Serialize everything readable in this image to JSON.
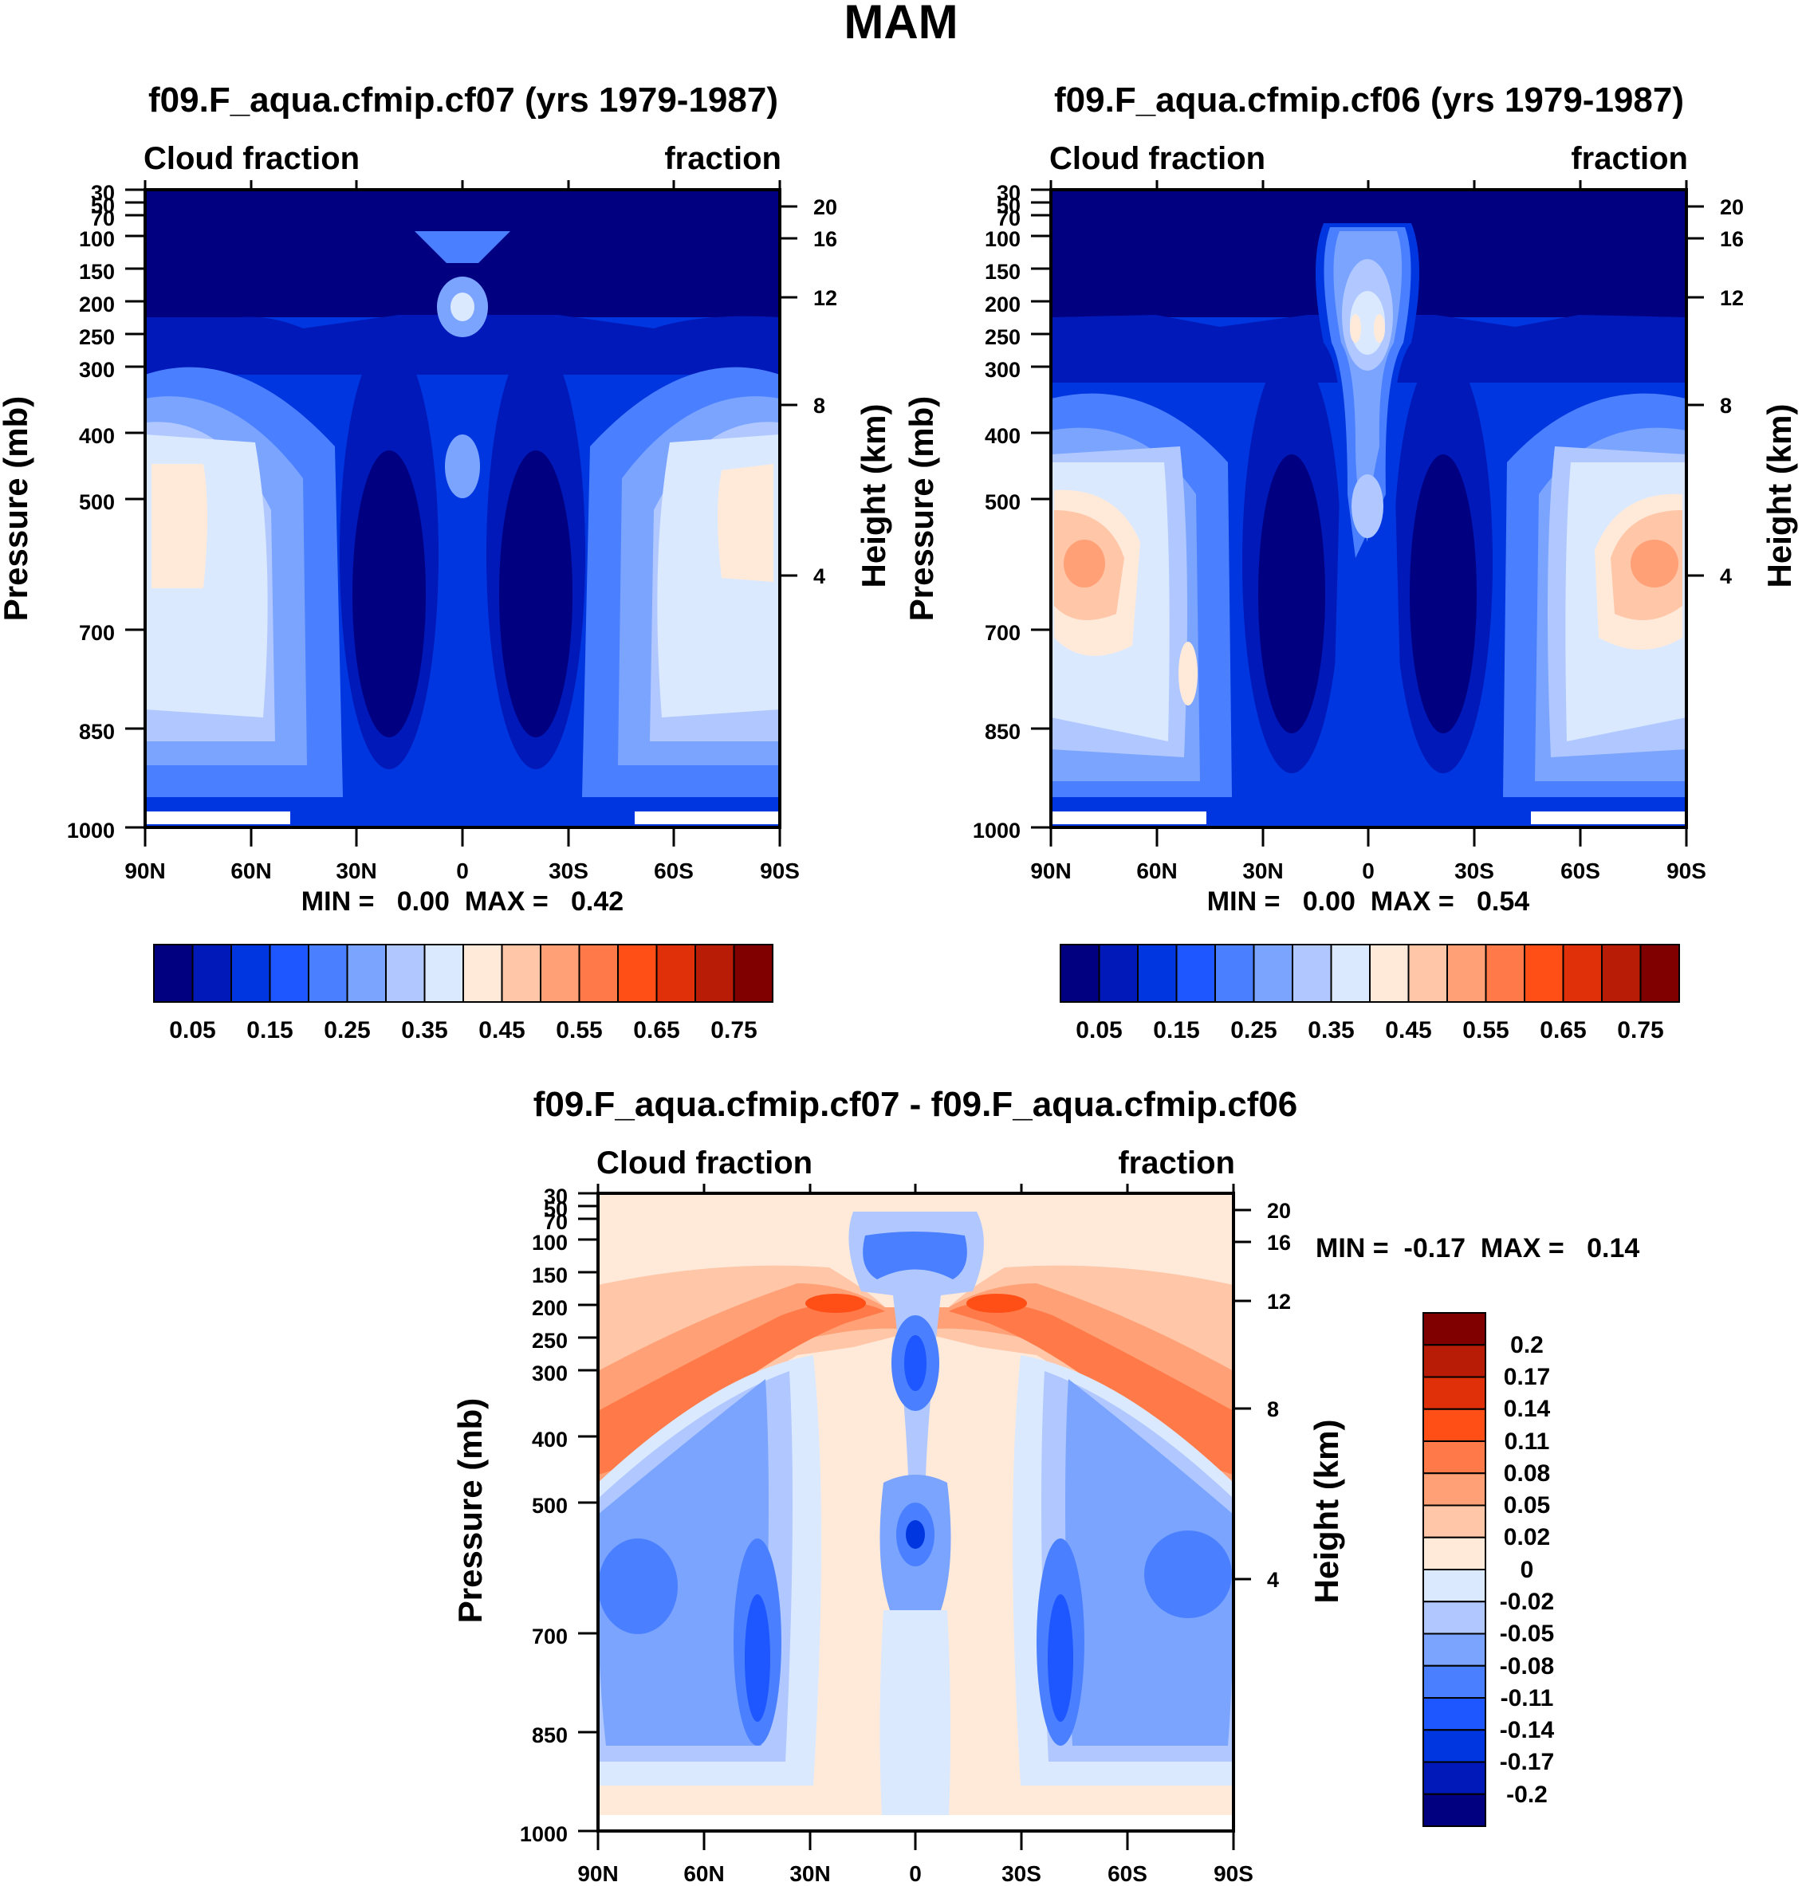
{
  "figure_title": "MAM",
  "chart_data": [
    {
      "type": "heatmap",
      "id": "p1",
      "title": "f09.F_aqua.cfmip.cf07 (yrs 1979-1987)",
      "left_label": "Cloud fraction",
      "right_label": "fraction",
      "ylabel": "Pressure (mb)",
      "y2label": "Height (km)",
      "xticks": [
        "90N",
        "60N",
        "30N",
        "0",
        "30S",
        "60S",
        "90S"
      ],
      "xrange": [
        -90,
        90
      ],
      "yticks": [
        30,
        50,
        70,
        100,
        150,
        200,
        250,
        300,
        400,
        500,
        700,
        850,
        1000
      ],
      "ytick_labels": [
        "30",
        "50",
        "70",
        "100",
        "150",
        "200",
        "250",
        "300",
        "400",
        "500",
        "700",
        "850",
        "1000"
      ],
      "height_ticks": [
        20,
        16,
        12,
        8,
        4
      ],
      "height_tick_labels": [
        "20",
        "16",
        "12",
        "8",
        "4"
      ],
      "stats": "MIN =   0.00  MAX =   0.42",
      "stats_min": 0.0,
      "stats_max": 0.42
    },
    {
      "type": "heatmap",
      "id": "p2",
      "title": "f09.F_aqua.cfmip.cf06 (yrs 1979-1987)",
      "left_label": "Cloud fraction",
      "right_label": "fraction",
      "ylabel": "Pressure (mb)",
      "y2label": "Height (km)",
      "xticks": [
        "90N",
        "60N",
        "30N",
        "0",
        "30S",
        "60S",
        "90S"
      ],
      "xrange": [
        -90,
        90
      ],
      "yticks": [
        30,
        50,
        70,
        100,
        150,
        200,
        250,
        300,
        400,
        500,
        700,
        850,
        1000
      ],
      "ytick_labels": [
        "30",
        "50",
        "70",
        "100",
        "150",
        "200",
        "250",
        "300",
        "400",
        "500",
        "700",
        "850",
        "1000"
      ],
      "height_ticks": [
        20,
        16,
        12,
        8,
        4
      ],
      "height_tick_labels": [
        "20",
        "16",
        "12",
        "8",
        "4"
      ],
      "stats": "MIN =   0.00  MAX =   0.54",
      "stats_min": 0.0,
      "stats_max": 0.54
    },
    {
      "type": "heatmap",
      "id": "p3",
      "title": "f09.F_aqua.cfmip.cf07 - f09.F_aqua.cfmip.cf06",
      "left_label": "Cloud fraction",
      "right_label": "fraction",
      "ylabel": "Pressure (mb)",
      "y2label": "Height (km)",
      "xticks": [
        "90N",
        "60N",
        "30N",
        "0",
        "30S",
        "60S",
        "90S"
      ],
      "xrange": [
        -90,
        90
      ],
      "yticks": [
        30,
        50,
        70,
        100,
        150,
        200,
        250,
        300,
        400,
        500,
        700,
        850,
        1000
      ],
      "ytick_labels": [
        "30",
        "50",
        "70",
        "100",
        "150",
        "200",
        "250",
        "300",
        "400",
        "500",
        "700",
        "850",
        "1000"
      ],
      "height_ticks": [
        20,
        16,
        12,
        8,
        4
      ],
      "height_tick_labels": [
        "20",
        "16",
        "12",
        "8",
        "4"
      ],
      "stats": "MIN =  -0.17  MAX =   0.14",
      "stats_min": -0.17,
      "stats_max": 0.14
    }
  ],
  "colorbar_levels": {
    "labels": [
      "0.05",
      "0.15",
      "0.25",
      "0.35",
      "0.45",
      "0.55",
      "0.65",
      "0.75"
    ],
    "colors": [
      "#000080",
      "#0019b8",
      "#0036e0",
      "#1e56ff",
      "#4a80ff",
      "#7ba4ff",
      "#b0c8ff",
      "#dbe9ff",
      "#ffeada",
      "#ffc6a8",
      "#ffa076",
      "#ff7a48",
      "#ff4e16",
      "#e0300a",
      "#b81c06",
      "#800000"
    ]
  },
  "colorbar_diff": {
    "labels": [
      "0.2",
      "0.17",
      "0.14",
      "0.11",
      "0.08",
      "0.05",
      "0.02",
      "0",
      "-0.02",
      "-0.05",
      "-0.08",
      "-0.11",
      "-0.14",
      "-0.17",
      "-0.2"
    ],
    "colors": [
      "#800000",
      "#b81c06",
      "#e0300a",
      "#ff4e16",
      "#ff7a48",
      "#ffa076",
      "#ffc6a8",
      "#ffeada",
      "#dbe9ff",
      "#b0c8ff",
      "#7ba4ff",
      "#4a80ff",
      "#1e56ff",
      "#0036e0",
      "#0019b8",
      "#000080"
    ]
  }
}
